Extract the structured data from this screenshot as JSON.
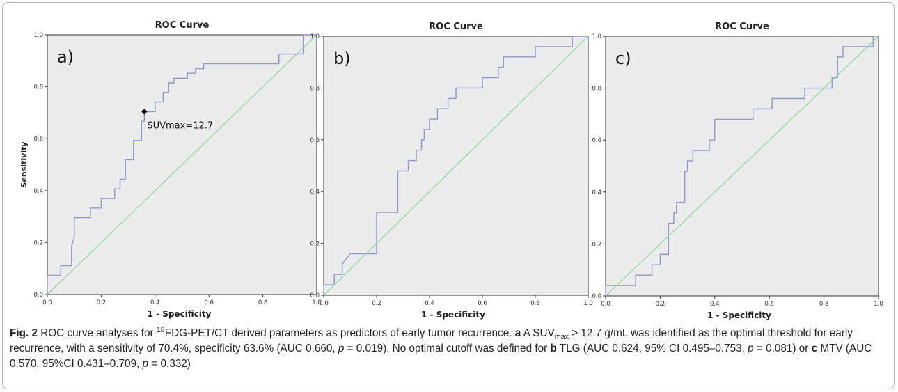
{
  "figure": {
    "caption": {
      "label": "Fig. 2",
      "s1": " ROC curve analyses for ",
      "sup18": "18",
      "s2": "FDG-PET/CT derived parameters as predictors of early tumor recurrence. ",
      "a": "a",
      "s3": " A SUV",
      "submax": "max",
      "s4": " > 12.7 g/mL was identified as the optimal threshold for early recurrence, with a sensitivity of 70.4%, specificity 63.6% (AUC 0.660, ",
      "p": "p",
      "s5": " = 0.019). No optimal cutoff was defined for ",
      "b": "b",
      "s6": " TLG (AUC 0.624, 95% CI 0.495–0.753, ",
      "s7": " = 0.081) or ",
      "c": "c",
      "s8": " MTV (AUC 0.570, 95%CI 0.431–0.709, ",
      "s9": " = 0.332)"
    }
  },
  "colors": {
    "plot_bg": "#ececec",
    "roc_line": "#8f95c9",
    "ref_line": "#8fd6a6",
    "axis": "#333333",
    "frame": "#b0b0b0"
  },
  "chart_data": [
    {
      "type": "line",
      "title": "ROC Curve",
      "panel_label": "a)",
      "xlabel": "1 - Specificity",
      "ylabel": "Sensitivity",
      "xlim": [
        0,
        1
      ],
      "ylim": [
        0,
        1
      ],
      "xticks": [
        "0.0",
        "0.2",
        "0.4",
        "0.6",
        "0.8",
        "1.0"
      ],
      "yticks": [
        "0.0",
        "0.2",
        "0.4",
        "0.6",
        "0.8",
        "1.0"
      ],
      "grid": false,
      "series": [
        {
          "role": "roc",
          "x": [
            0,
            0,
            0.05,
            0.05,
            0.09,
            0.09,
            0.1,
            0.1,
            0.16,
            0.16,
            0.2,
            0.2,
            0.25,
            0.25,
            0.27,
            0.27,
            0.29,
            0.29,
            0.32,
            0.32,
            0.35,
            0.35,
            0.36,
            0.36,
            0.4,
            0.4,
            0.43,
            0.43,
            0.45,
            0.45,
            0.47,
            0.47,
            0.52,
            0.52,
            0.55,
            0.55,
            0.58,
            0.58,
            0.64,
            0.64,
            0.68,
            0.68,
            0.86,
            0.86,
            0.9,
            0.9,
            0.95,
            0.95,
            1
          ],
          "y": [
            0,
            0.074,
            0.074,
            0.111,
            0.111,
            0.185,
            0.222,
            0.296,
            0.296,
            0.333,
            0.333,
            0.37,
            0.37,
            0.407,
            0.407,
            0.444,
            0.444,
            0.519,
            0.519,
            0.593,
            0.593,
            0.667,
            0.667,
            0.704,
            0.704,
            0.741,
            0.741,
            0.778,
            0.778,
            0.815,
            0.815,
            0.833,
            0.833,
            0.852,
            0.852,
            0.87,
            0.87,
            0.889,
            0.889,
            0.889,
            0.889,
            0.889,
            0.889,
            0.926,
            0.926,
            0.926,
            0.926,
            1,
            1
          ]
        },
        {
          "role": "reference",
          "x": [
            0,
            1
          ],
          "y": [
            0,
            1
          ]
        }
      ],
      "annotations": [
        {
          "x": 0.36,
          "y": 0.704,
          "text": "SUVmax=12.7"
        }
      ]
    },
    {
      "type": "line",
      "title": "ROC Curve",
      "panel_label": "b)",
      "xlabel": "1 - Specificity",
      "xlim": [
        0,
        1
      ],
      "ylim": [
        0,
        1
      ],
      "xticks": [
        "0.0",
        "0.2",
        "0.4",
        "0.6",
        "0.8",
        "1.0"
      ],
      "yticks": [
        "0.0",
        "0.2",
        "0.4",
        "0.6",
        "0.8",
        "1.0"
      ],
      "grid": false,
      "series": [
        {
          "role": "roc",
          "x": [
            0,
            0,
            0.04,
            0.04,
            0.07,
            0.07,
            0.1,
            0.1,
            0.2,
            0.2,
            0.28,
            0.28,
            0.32,
            0.32,
            0.35,
            0.35,
            0.37,
            0.37,
            0.38,
            0.38,
            0.4,
            0.4,
            0.43,
            0.43,
            0.47,
            0.47,
            0.5,
            0.5,
            0.53,
            0.53,
            0.6,
            0.6,
            0.66,
            0.66,
            0.68,
            0.68,
            0.72,
            0.72,
            0.8,
            0.8,
            0.94,
            0.94,
            1
          ],
          "y": [
            0,
            0.04,
            0.04,
            0.08,
            0.08,
            0.12,
            0.16,
            0.16,
            0.16,
            0.32,
            0.32,
            0.48,
            0.48,
            0.52,
            0.52,
            0.56,
            0.56,
            0.6,
            0.6,
            0.64,
            0.64,
            0.68,
            0.68,
            0.72,
            0.72,
            0.76,
            0.76,
            0.8,
            0.8,
            0.8,
            0.8,
            0.84,
            0.84,
            0.88,
            0.88,
            0.92,
            0.92,
            0.92,
            0.92,
            0.96,
            0.96,
            1,
            1
          ]
        },
        {
          "role": "reference",
          "x": [
            0,
            1
          ],
          "y": [
            0,
            1
          ]
        }
      ]
    },
    {
      "type": "line",
      "title": "ROC Curve",
      "panel_label": "c)",
      "xlabel": "1 - Specificity",
      "xlim": [
        0,
        1
      ],
      "ylim": [
        0,
        1
      ],
      "xticks": [
        "0.0",
        "0.2",
        "0.4",
        "0.6",
        "0.8",
        "1.0"
      ],
      "yticks": [
        "0.0",
        "0.2",
        "0.4",
        "0.6",
        "0.8",
        "1.0"
      ],
      "grid": false,
      "series": [
        {
          "role": "roc",
          "x": [
            0,
            0,
            0.02,
            0.02,
            0.11,
            0.11,
            0.17,
            0.17,
            0.2,
            0.2,
            0.23,
            0.23,
            0.25,
            0.25,
            0.26,
            0.26,
            0.29,
            0.29,
            0.3,
            0.3,
            0.32,
            0.32,
            0.35,
            0.35,
            0.38,
            0.38,
            0.4,
            0.4,
            0.42,
            0.42,
            0.54,
            0.54,
            0.61,
            0.61,
            0.73,
            0.73,
            0.83,
            0.83,
            0.85,
            0.85,
            0.87,
            0.87,
            0.98,
            0.98,
            1
          ],
          "y": [
            0,
            0.04,
            0.04,
            0.04,
            0.04,
            0.08,
            0.08,
            0.12,
            0.12,
            0.16,
            0.16,
            0.28,
            0.28,
            0.32,
            0.32,
            0.36,
            0.36,
            0.48,
            0.48,
            0.52,
            0.52,
            0.56,
            0.56,
            0.56,
            0.56,
            0.6,
            0.6,
            0.68,
            0.68,
            0.68,
            0.68,
            0.72,
            0.72,
            0.76,
            0.76,
            0.8,
            0.8,
            0.84,
            0.84,
            0.92,
            0.92,
            0.96,
            0.96,
            1,
            1
          ]
        },
        {
          "role": "reference",
          "x": [
            0,
            1
          ],
          "y": [
            0,
            1
          ]
        }
      ]
    }
  ]
}
